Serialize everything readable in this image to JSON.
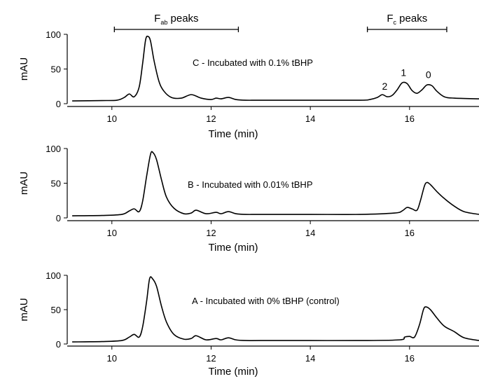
{
  "chart_data": [
    {
      "type": "line",
      "panel": "C",
      "annotation": "C - Incubated with 0.1% tBHP",
      "xlabel": "Time (min)",
      "ylabel": "mAU",
      "xlim": [
        9.1,
        17.4
      ],
      "ylim": [
        0,
        100
      ],
      "xticks": [
        10,
        12,
        14,
        16
      ],
      "yticks": [
        0,
        50,
        100
      ],
      "series": [
        {
          "x": [
            9.2,
            9.8,
            10.1,
            10.25,
            10.35,
            10.45,
            10.55,
            10.62,
            10.68,
            10.73,
            10.78,
            10.85,
            10.95,
            11.05,
            11.2,
            11.4,
            11.6,
            11.8,
            12.0,
            12.1,
            12.2,
            12.35,
            12.5,
            12.7,
            13.0,
            14.0,
            15.0,
            15.2,
            15.35,
            15.45,
            15.55,
            15.65,
            15.75,
            15.85,
            15.95,
            16.05,
            16.15,
            16.25,
            16.35,
            16.45,
            16.55,
            16.7,
            16.9,
            17.4
          ],
          "y": [
            4,
            4.5,
            5,
            9,
            14,
            10,
            24,
            58,
            92,
            97,
            90,
            62,
            32,
            18,
            9,
            8,
            13,
            8,
            6,
            8,
            7,
            9,
            6,
            5,
            5,
            5,
            5,
            6,
            9,
            13,
            10,
            12,
            20,
            30,
            29,
            19,
            15,
            20,
            27,
            26,
            18,
            10,
            8,
            7
          ]
        }
      ]
    },
    {
      "type": "line",
      "panel": "B",
      "annotation": "B - Incubated with 0.01% tBHP",
      "xlabel": "Time (min)",
      "ylabel": "mAU",
      "xlim": [
        9.1,
        17.4
      ],
      "ylim": [
        0,
        100
      ],
      "xticks": [
        10,
        12,
        14,
        16
      ],
      "yticks": [
        0,
        50,
        100
      ],
      "series": [
        {
          "x": [
            9.2,
            9.8,
            10.2,
            10.35,
            10.45,
            10.55,
            10.62,
            10.7,
            10.78,
            10.83,
            10.9,
            11.0,
            11.1,
            11.25,
            11.45,
            11.6,
            11.7,
            11.9,
            12.1,
            12.2,
            12.35,
            12.5,
            12.7,
            13.0,
            14.0,
            15.0,
            15.7,
            15.85,
            15.95,
            16.05,
            16.15,
            16.22,
            16.3,
            16.35,
            16.42,
            16.55,
            16.7,
            16.9,
            17.1,
            17.4
          ],
          "y": [
            3,
            3.5,
            5,
            10,
            13,
            9,
            24,
            60,
            92,
            94,
            84,
            55,
            30,
            14,
            6,
            7,
            11,
            6,
            8,
            6,
            9,
            6,
            5,
            5,
            5,
            5,
            7,
            10,
            15,
            13,
            11,
            25,
            46,
            51,
            48,
            38,
            28,
            17,
            9,
            5
          ]
        }
      ]
    },
    {
      "type": "line",
      "panel": "A",
      "annotation": "A - Incubated with 0% tBHP (control)",
      "xlabel": "Time (min)",
      "ylabel": "mAU",
      "xlim": [
        9.1,
        17.4
      ],
      "ylim": [
        0,
        100
      ],
      "xticks": [
        10,
        12,
        14,
        16
      ],
      "yticks": [
        0,
        50,
        100
      ],
      "series": [
        {
          "x": [
            9.2,
            9.8,
            10.2,
            10.35,
            10.45,
            10.55,
            10.62,
            10.7,
            10.76,
            10.82,
            10.9,
            11.0,
            11.1,
            11.25,
            11.45,
            11.6,
            11.7,
            11.9,
            12.1,
            12.2,
            12.35,
            12.5,
            12.7,
            13.0,
            14.0,
            15.0,
            15.8,
            15.9,
            16.0,
            16.1,
            16.2,
            16.28,
            16.33,
            16.42,
            16.55,
            16.7,
            16.9,
            17.1,
            17.4
          ],
          "y": [
            3,
            3.5,
            5,
            10,
            14,
            10,
            25,
            62,
            95,
            95,
            84,
            55,
            32,
            14,
            7,
            8,
            12,
            6,
            8,
            6,
            9,
            6,
            5,
            5,
            5,
            5,
            6,
            10,
            11,
            10,
            28,
            50,
            54,
            50,
            38,
            26,
            18,
            9,
            5
          ]
        }
      ]
    }
  ],
  "brackets": [
    {
      "label_main": "F",
      "label_sub": "ab",
      "label_rest": " peaks",
      "x_start": 10.05,
      "x_end": 12.55
    },
    {
      "label_main": "F",
      "label_sub": "c",
      "label_rest": " peaks",
      "x_start": 15.15,
      "x_end": 16.75
    }
  ],
  "peak_labels": [
    {
      "text": "2",
      "x": 15.5,
      "y": 16
    },
    {
      "text": "1",
      "x": 15.88,
      "y": 36
    },
    {
      "text": "0",
      "x": 16.38,
      "y": 33
    }
  ]
}
